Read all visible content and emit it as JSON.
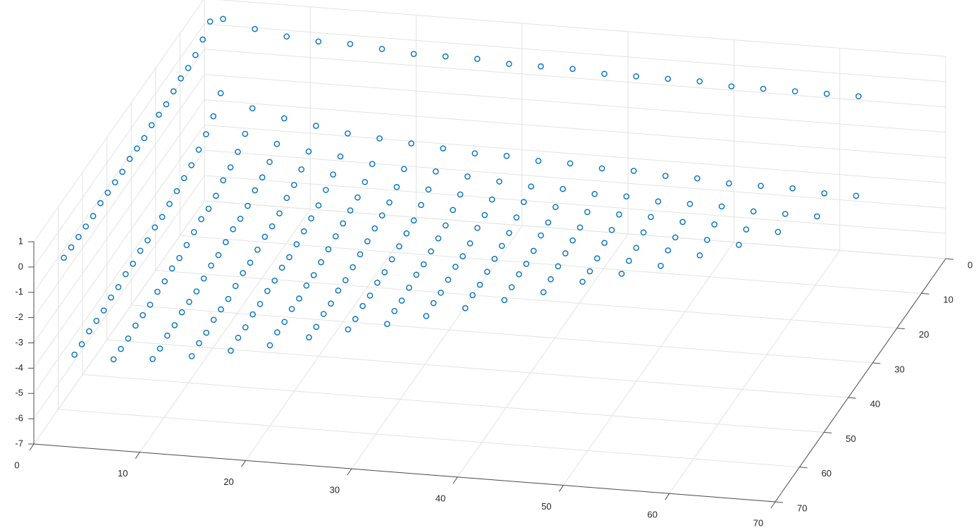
{
  "chart_data": {
    "type": "scatter3",
    "color": "#0072bd",
    "grid": true,
    "xlim": [
      0,
      70
    ],
    "ylim": [
      0,
      70
    ],
    "zlim": [
      -7,
      1
    ],
    "xticks": [
      0,
      10,
      20,
      30,
      40,
      50,
      60,
      70
    ],
    "yticks": [
      0,
      10,
      20,
      30,
      40,
      50,
      60,
      70
    ],
    "zticks": [
      -7,
      -6,
      -5,
      -4,
      -3,
      -2,
      -1,
      0,
      1
    ],
    "series": [
      {
        "x": 1,
        "y": [
          2,
          5,
          8,
          11,
          14,
          17,
          20,
          23,
          26,
          29,
          32,
          35,
          38,
          41,
          44,
          47,
          50,
          53,
          56,
          59,
          62
        ],
        "z": [
          0.4,
          0.1,
          -0.1,
          -0.2,
          -0.2,
          -0.3,
          -0.4,
          -0.4,
          -0.4,
          -0.5,
          -0.5,
          -0.5,
          -0.6,
          -0.6,
          -0.6,
          -0.6,
          -0.7,
          -0.7,
          -0.7,
          -0.7,
          -0.7
        ]
      },
      {
        "x": 2,
        "y": [
          1,
          2,
          5,
          8,
          11,
          14,
          17,
          20,
          23,
          26,
          29,
          32,
          35,
          38,
          41,
          44,
          47,
          50,
          53,
          56,
          59,
          62
        ],
        "z": [
          0.4,
          -2.4,
          -2.9,
          -3.2,
          -3.4,
          -3.6,
          -3.7,
          -3.8,
          -3.9,
          -4.0,
          -4.0,
          -4.1,
          -4.1,
          -4.2,
          -4.2,
          -4.3,
          -4.3,
          -4.4,
          -4.4,
          -4.4,
          -4.5,
          -4.5
        ]
      },
      {
        "x": 5,
        "y": [
          1,
          2,
          5,
          8,
          11,
          14,
          17,
          20,
          23,
          26,
          29,
          32,
          35,
          38,
          41,
          44,
          47,
          50,
          53,
          56,
          59
        ],
        "z": [
          0.1,
          -2.9,
          -3.5,
          -3.8,
          -4.0,
          -4.1,
          -4.3,
          -4.4,
          -4.4,
          -4.5,
          -4.6,
          -4.7,
          -4.7,
          -4.8,
          -4.8,
          -4.9,
          -4.9,
          -4.9,
          -5.0,
          -5.0,
          -5.0
        ]
      },
      {
        "x": 8,
        "y": [
          1,
          2,
          5,
          8,
          11,
          14,
          17,
          20,
          23,
          26,
          29,
          32,
          35,
          38,
          41,
          44,
          47,
          50,
          53,
          56
        ],
        "z": [
          -0.1,
          -3.2,
          -3.8,
          -4.1,
          -4.3,
          -4.4,
          -4.6,
          -4.7,
          -4.7,
          -4.8,
          -4.9,
          -4.9,
          -5.0,
          -5.1,
          -5.1,
          -5.1,
          -5.2,
          -5.2,
          -5.3,
          -5.3
        ]
      },
      {
        "x": 11,
        "y": [
          1,
          2,
          5,
          8,
          11,
          14,
          17,
          20,
          23,
          26,
          29,
          32,
          35,
          38,
          41,
          44,
          47,
          50,
          53
        ],
        "z": [
          -0.2,
          -3.4,
          -4.0,
          -4.3,
          -4.5,
          -4.6,
          -4.8,
          -4.9,
          -4.9,
          -5.0,
          -5.1,
          -5.1,
          -5.2,
          -5.3,
          -5.3,
          -5.3,
          -5.4,
          -5.4,
          -5.5
        ]
      },
      {
        "x": 14,
        "y": [
          1,
          2,
          5,
          8,
          11,
          14,
          17,
          20,
          23,
          26,
          29,
          32,
          35,
          38,
          41,
          44,
          47,
          50
        ],
        "z": [
          -0.2,
          -3.6,
          -4.1,
          -4.4,
          -4.6,
          -4.8,
          -4.9,
          -5.0,
          -5.1,
          -5.2,
          -5.2,
          -5.3,
          -5.3,
          -5.4,
          -5.4,
          -5.5,
          -5.5,
          -5.6
        ]
      },
      {
        "x": 17,
        "y": [
          1,
          2,
          5,
          8,
          11,
          14,
          17,
          20,
          23,
          26,
          29,
          32,
          35,
          38,
          41,
          44,
          47
        ],
        "z": [
          -0.3,
          -3.7,
          -4.3,
          -4.6,
          -4.8,
          -4.9,
          -5.0,
          -5.1,
          -5.2,
          -5.3,
          -5.4,
          -5.4,
          -5.5,
          -5.5,
          -5.6,
          -5.6,
          -5.7
        ]
      },
      {
        "x": 20,
        "y": [
          1,
          2,
          5,
          8,
          11,
          14,
          17,
          20,
          23,
          26,
          29,
          32,
          35,
          38,
          41,
          44
        ],
        "z": [
          -0.4,
          -3.8,
          -4.4,
          -4.7,
          -4.9,
          -5.0,
          -5.1,
          -5.2,
          -5.3,
          -5.4,
          -5.5,
          -5.5,
          -5.6,
          -5.6,
          -5.7,
          -5.7
        ]
      },
      {
        "x": 23,
        "y": [
          1,
          2,
          5,
          8,
          11,
          14,
          17,
          20,
          23,
          26,
          29,
          32,
          35,
          38,
          41
        ],
        "z": [
          -0.4,
          -3.9,
          -4.4,
          -4.7,
          -4.9,
          -5.1,
          -5.2,
          -5.3,
          -5.4,
          -5.5,
          -5.5,
          -5.6,
          -5.6,
          -5.7,
          -5.7
        ]
      },
      {
        "x": 26,
        "y": [
          1,
          2,
          5,
          8,
          11,
          14,
          17,
          20,
          23,
          26,
          29,
          32,
          35,
          38
        ],
        "z": [
          -0.4,
          -4.0,
          -4.5,
          -4.8,
          -5.0,
          -5.2,
          -5.3,
          -5.4,
          -5.5,
          -5.5,
          -5.6,
          -5.7,
          -5.7,
          -5.8
        ]
      },
      {
        "x": 29,
        "y": [
          1,
          2,
          5,
          8,
          11,
          14,
          17,
          20,
          23,
          26,
          29,
          32,
          35
        ],
        "z": [
          -0.5,
          -4.0,
          -4.6,
          -4.9,
          -5.1,
          -5.2,
          -5.4,
          -5.5,
          -5.5,
          -5.6,
          -5.7,
          -5.7,
          -5.8
        ]
      },
      {
        "x": 32,
        "y": [
          1,
          2,
          5,
          8,
          11,
          14,
          17,
          20,
          23,
          26,
          29,
          32
        ],
        "z": [
          -0.5,
          -4.1,
          -4.7,
          -4.9,
          -5.1,
          -5.3,
          -5.4,
          -5.5,
          -5.6,
          -5.7,
          -5.7,
          -5.8
        ]
      },
      {
        "x": 35,
        "y": [
          1,
          2,
          5,
          8,
          11,
          14,
          17,
          20,
          23,
          26,
          29
        ],
        "z": [
          -0.5,
          -4.1,
          -4.7,
          -5.0,
          -5.2,
          -5.3,
          -5.5,
          -5.6,
          -5.6,
          -5.7,
          -5.8
        ]
      },
      {
        "x": 38,
        "y": [
          1,
          2,
          5,
          8,
          11,
          14,
          17,
          20,
          23,
          26
        ],
        "z": [
          -0.6,
          -4.2,
          -4.8,
          -5.1,
          -5.3,
          -5.4,
          -5.5,
          -5.6,
          -5.7,
          -5.8
        ]
      },
      {
        "x": 41,
        "y": [
          1,
          2,
          5,
          8,
          11,
          14,
          17,
          20,
          23
        ],
        "z": [
          -0.6,
          -4.2,
          -4.8,
          -5.1,
          -5.3,
          -5.4,
          -5.6,
          -5.7,
          -5.7
        ]
      },
      {
        "x": 44,
        "y": [
          1,
          2,
          5,
          8,
          11,
          14,
          17,
          20
        ],
        "z": [
          -0.6,
          -4.3,
          -4.9,
          -5.1,
          -5.3,
          -5.5,
          -5.6,
          -5.7
        ]
      },
      {
        "x": 47,
        "y": [
          1,
          2,
          5,
          8,
          11,
          14,
          17
        ],
        "z": [
          -0.6,
          -4.3,
          -4.9,
          -5.2,
          -5.4,
          -5.5,
          -5.7
        ]
      },
      {
        "x": 50,
        "y": [
          1,
          2,
          5,
          8,
          11,
          14
        ],
        "z": [
          -0.7,
          -4.4,
          -4.9,
          -5.2,
          -5.4,
          -5.6
        ]
      },
      {
        "x": 53,
        "y": [
          1,
          2,
          5,
          8,
          11
        ],
        "z": [
          -0.7,
          -4.4,
          -5.0,
          -5.3,
          -5.5
        ]
      },
      {
        "x": 56,
        "y": [
          1,
          2,
          5,
          8
        ],
        "z": [
          -0.7,
          -4.4,
          -5.0,
          -5.3
        ]
      },
      {
        "x": 59,
        "y": [
          1,
          2,
          5
        ],
        "z": [
          -0.7,
          -4.5,
          -5.0
        ]
      },
      {
        "x": 62,
        "y": [
          1,
          2
        ],
        "z": [
          -0.7,
          -4.5
        ]
      }
    ]
  }
}
